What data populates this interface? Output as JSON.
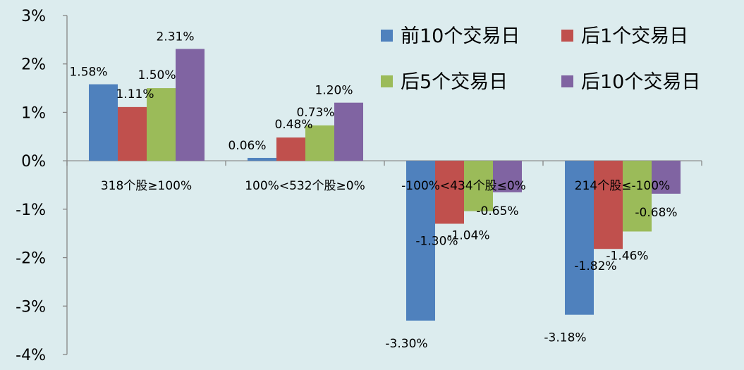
{
  "chart_data": {
    "type": "bar",
    "categories": [
      "318个股≥100%",
      "100%<532个股≥0%",
      "-100%<434个股≤0%",
      "214个股≤-100%"
    ],
    "series": [
      {
        "name": "前10个交易日",
        "color": "#4f81bd",
        "values": [
          1.58,
          0.06,
          -3.3,
          -3.18
        ],
        "labels": [
          "1.58%",
          "0.06%",
          "-3.30%",
          "-3.18%"
        ]
      },
      {
        "name": "后1个交易日",
        "color": "#c0504d",
        "values": [
          1.11,
          0.48,
          -1.3,
          -1.82
        ],
        "labels": [
          "1.11%",
          "0.48%",
          "-1.30%",
          "-1.82%"
        ]
      },
      {
        "name": "后5个交易日",
        "color": "#9bbb59",
        "values": [
          1.5,
          0.73,
          -1.04,
          -1.46
        ],
        "labels": [
          "1.50%",
          "0.73%",
          "-1.04%",
          "-1.46%"
        ]
      },
      {
        "name": "后10个交易日",
        "color": "#8064a2",
        "values": [
          2.31,
          1.2,
          -0.65,
          -0.68
        ],
        "labels": [
          "2.31%",
          "1.20%",
          "-0.65%",
          "-0.68%"
        ]
      }
    ],
    "yticks": [
      3,
      2,
      1,
      0,
      -1,
      -2,
      -3,
      -4
    ],
    "ytick_labels": [
      "3%",
      "2%",
      "1%",
      "0%",
      "-1%",
      "-2%",
      "-3%",
      "-4%"
    ],
    "ylim": [
      -4,
      3
    ],
    "unit": "%",
    "grid": false,
    "legend_position": "top-right"
  }
}
